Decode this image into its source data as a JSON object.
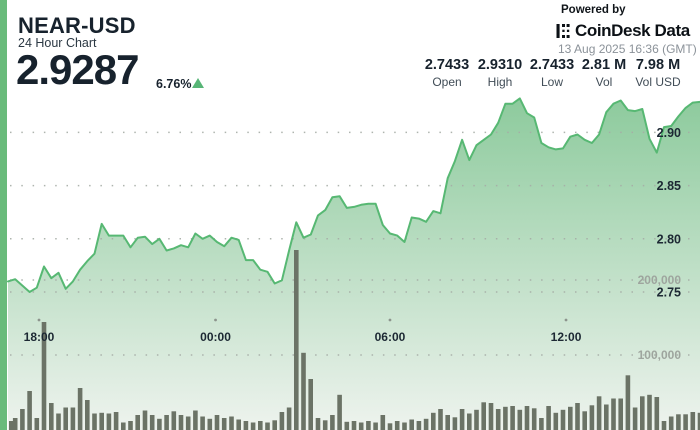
{
  "header": {
    "symbol": "NEAR-USD",
    "subtitle": "24 Hour Chart",
    "price": "2.9287",
    "change_pct": "6.76%",
    "powered_by": "Powered by",
    "brand": "CoinDesk Data",
    "timestamp": "13 Aug 2025 16:36 (GMT)"
  },
  "stats": [
    {
      "value": "2.7433",
      "label": "Open"
    },
    {
      "value": "2.9310",
      "label": "High"
    },
    {
      "value": "2.7433",
      "label": "Low"
    },
    {
      "value": "2.81 M",
      "label": "Vol"
    },
    {
      "value": "7.98 M",
      "label": "Vol USD"
    }
  ],
  "colors": {
    "accent_green": "#69bb7b",
    "line_green": "#57b873",
    "fill_top": "#8cca9c",
    "fill_bottom": "#eef3ee",
    "up_triangle": "#57b576",
    "volume_bar": "#6b7366",
    "grid_dot": "#a6aca6",
    "dark_text": "#1c2833",
    "muted_axis_text": "#9ea59e"
  },
  "chart_data": {
    "type": "area",
    "title": "NEAR-USD 24 Hour Chart",
    "x_ticks": [
      "18:00",
      "00:00",
      "06:00",
      "12:00"
    ],
    "price_ticks": [
      {
        "label": "2.75",
        "value": 2.75
      },
      {
        "label": "2.80",
        "value": 2.8
      },
      {
        "label": "2.85",
        "value": 2.85
      },
      {
        "label": "2.90",
        "value": 2.9
      }
    ],
    "volume_ticks": [
      {
        "label": "100,000",
        "value": 100000
      },
      {
        "label": "200,000",
        "value": 200000
      }
    ],
    "price_range": [
      2.7433,
      2.931
    ],
    "time_span_hours": 24,
    "prices": [
      2.76,
      2.762,
      2.756,
      2.75,
      2.754,
      2.774,
      2.763,
      2.768,
      2.753,
      2.76,
      2.771,
      2.779,
      2.786,
      2.814,
      2.803,
      2.803,
      2.803,
      2.792,
      2.801,
      2.802,
      2.795,
      2.8,
      2.789,
      2.791,
      2.794,
      2.792,
      2.805,
      2.8,
      2.803,
      2.797,
      2.793,
      2.801,
      2.799,
      2.78,
      2.78,
      2.771,
      2.769,
      2.758,
      2.761,
      2.789,
      2.8155,
      2.801,
      2.804,
      2.822,
      2.827,
      2.839,
      2.84,
      2.829,
      2.83,
      2.832,
      2.833,
      2.833,
      2.813,
      2.805,
      2.803,
      2.797,
      2.82,
      2.819,
      2.816,
      2.826,
      2.824,
      2.857,
      2.873,
      2.893,
      2.874,
      2.888,
      2.893,
      2.898,
      2.909,
      2.927,
      2.927,
      2.932,
      2.918,
      2.914,
      2.89,
      2.886,
      2.884,
      2.885,
      2.896,
      2.898,
      2.893,
      2.89,
      2.898,
      2.919,
      2.927,
      2.93,
      2.921,
      2.92,
      2.922,
      2.894,
      2.881,
      2.905,
      2.906,
      2.915,
      2.923,
      2.928,
      2.9287
    ],
    "volumes": [
      12000,
      16000,
      28000,
      52000,
      16000,
      144000,
      36000,
      22000,
      30000,
      30000,
      56000,
      40000,
      22000,
      23000,
      22000,
      24000,
      10000,
      12000,
      20000,
      26000,
      20000,
      15000,
      20000,
      25000,
      20000,
      18000,
      26000,
      18000,
      15000,
      20000,
      16000,
      18000,
      14000,
      12000,
      10000,
      12000,
      10000,
      13000,
      24000,
      30000,
      240000,
      103000,
      68000,
      16000,
      13000,
      20000,
      47000,
      11000,
      12000,
      10000,
      12000,
      10000,
      20000,
      9000,
      12000,
      10000,
      14000,
      12000,
      15000,
      23000,
      28000,
      20000,
      17000,
      28000,
      22000,
      27000,
      37000,
      36000,
      28000,
      31000,
      32000,
      27000,
      32000,
      29000,
      16000,
      32000,
      23000,
      27000,
      31000,
      36000,
      25000,
      33000,
      45000,
      34000,
      42000,
      42000,
      73000,
      30000,
      45000,
      47000,
      44000,
      12000,
      18000,
      21000,
      21000,
      24000,
      23000
    ]
  }
}
